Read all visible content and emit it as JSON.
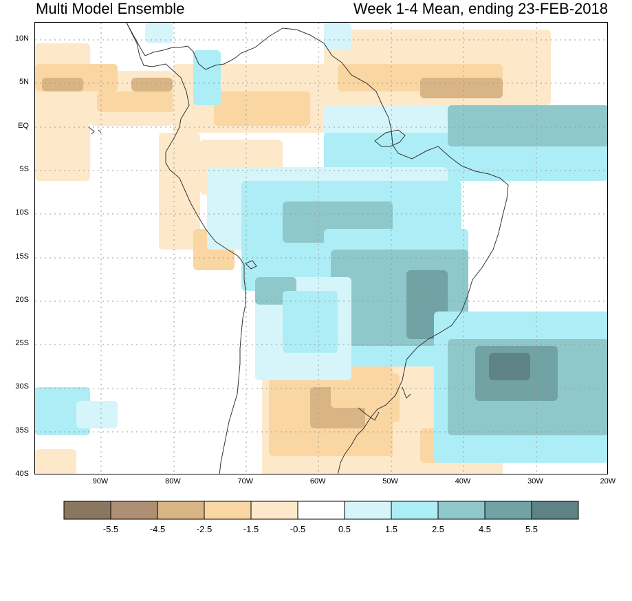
{
  "title_left": "Multi Model Ensemble",
  "title_right": "Week 1-4 Mean, ending 23-FEB-2018",
  "lat_labels": [
    "10N",
    "5N",
    "EQ",
    "5S",
    "10S",
    "15S",
    "20S",
    "25S",
    "30S",
    "35S",
    "40S"
  ],
  "lon_labels": [
    "90W",
    "80W",
    "70W",
    "60W",
    "50W",
    "40W",
    "30W",
    "20W"
  ],
  "colorbar": {
    "labels": [
      "-5.5",
      "-4.5",
      "-2.5",
      "-1.5",
      "-0.5",
      "0.5",
      "1.5",
      "2.5",
      "4.5",
      "5.5"
    ],
    "colors": [
      "#8b7760",
      "#ad9074",
      "#d9b485",
      "#fad6a3",
      "#fde9ca",
      "#ffffff",
      "#d6f5fb",
      "#adedf6",
      "#8ec8cb",
      "#71a2a4",
      "#5e8286"
    ]
  },
  "colors": {
    "neg_1": "#fde9ca",
    "neg_2": "#fad6a3",
    "neg_3": "#d9b485",
    "pos_1": "#d6f5fb",
    "pos_2": "#adedf6",
    "pos_3": "#8ec8cb",
    "pos_4": "#71a2a4",
    "pos_5": "#5e8286",
    "grid": "#999999",
    "coast": "#333333"
  }
}
